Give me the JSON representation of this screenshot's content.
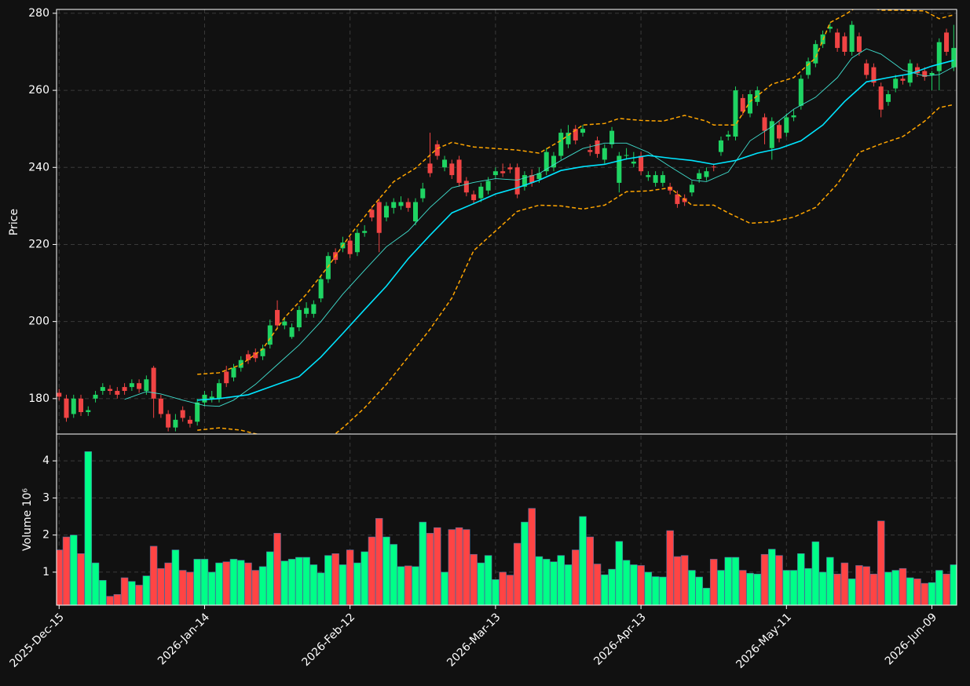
{
  "chart_data": {
    "type": "candlestick",
    "panels": [
      {
        "ylabel": "Price",
        "ylim": [
          170.8,
          281.0
        ],
        "yticks": [
          180,
          200,
          220,
          240,
          260,
          280
        ]
      },
      {
        "ylabel": "Volume  10⁶",
        "ylim": [
          0.11,
          4.68
        ],
        "yticks": [
          1,
          2,
          3,
          4
        ]
      }
    ],
    "xlim": [
      -0.35,
      123.4
    ],
    "xticks": [
      {
        "value": 0,
        "label": "2025-Dec-15"
      },
      {
        "value": 20,
        "label": "2026-Jan-14"
      },
      {
        "value": 40,
        "label": "2026-Feb-12"
      },
      {
        "value": 60,
        "label": "2026-Mar-13"
      },
      {
        "value": 80,
        "label": "2026-Apr-13"
      },
      {
        "value": 100,
        "label": "2026-May-11"
      },
      {
        "value": 120,
        "label": "2026-Jun-09"
      }
    ],
    "grid": true,
    "up_color": "#1fd463",
    "down_color": "#f04444",
    "volume_up_color": "#00ff88",
    "volume_down_color": "#ff4444",
    "open": [
      181.5,
      180,
      176,
      180,
      176.5,
      180,
      182,
      182.5,
      182,
      183,
      183,
      184,
      182,
      188,
      180,
      176,
      172.5,
      177,
      174.5,
      174,
      179,
      180,
      180,
      187,
      185.5,
      188,
      191.5,
      192,
      191,
      194,
      203,
      199,
      196,
      198.5,
      202,
      202,
      206,
      211,
      218,
      219,
      221,
      218,
      223,
      229,
      231,
      227,
      229.5,
      230,
      231,
      226,
      232,
      241,
      246,
      240,
      241,
      242,
      236.5,
      233,
      232,
      234,
      238,
      239,
      240,
      240,
      235,
      238,
      237,
      239,
      240,
      243,
      246,
      250,
      249,
      244.5,
      247,
      242,
      246,
      236,
      243,
      241,
      243,
      237.5,
      236,
      236,
      235,
      233,
      232,
      233.5,
      237,
      237.5,
      240.2,
      244,
      248,
      248,
      258,
      254,
      257,
      253,
      245,
      251,
      249,
      253,
      256,
      264,
      267,
      272,
      276,
      275,
      274,
      270,
      274,
      267,
      266,
      261,
      257,
      260.5,
      263,
      262,
      266,
      265,
      264,
      265,
      275,
      266
    ],
    "high": [
      182.5,
      181,
      181,
      181,
      178,
      182,
      184,
      183.5,
      183,
      184,
      185,
      185,
      186,
      188.5,
      181,
      177,
      176,
      178,
      175.5,
      180,
      182,
      182,
      185,
      188.5,
      189,
      191,
      192.5,
      193,
      194,
      200.5,
      205.5,
      201,
      199.5,
      204,
      205,
      205.5,
      212,
      218,
      219,
      222,
      222,
      224,
      225,
      230,
      232,
      231,
      232,
      232.5,
      232,
      232,
      236,
      249,
      247,
      243,
      242,
      243,
      237.5,
      234,
      236,
      237.5,
      240,
      241,
      241,
      241,
      239,
      239.5,
      240,
      245,
      244,
      250,
      251,
      251,
      251,
      246,
      248,
      246,
      250.5,
      244,
      245,
      244,
      244,
      239,
      239,
      239,
      236,
      234,
      233,
      236.5,
      239.5,
      240,
      241,
      248,
      249.5,
      261,
      259,
      260,
      261,
      254,
      253,
      252,
      254,
      255,
      264,
      268.5,
      273,
      275.5,
      277.5,
      276,
      275,
      278,
      275,
      268,
      267,
      262,
      260,
      264,
      264,
      268,
      267,
      266,
      265,
      273.5,
      276,
      277
    ],
    "low": [
      179.5,
      174,
      175,
      175.5,
      175.5,
      179,
      181,
      181,
      180,
      181,
      182,
      181.5,
      181,
      175,
      175,
      171.5,
      171.5,
      174,
      172.5,
      173,
      178,
      179,
      179,
      183,
      184.5,
      187,
      189,
      189.5,
      190,
      193,
      198,
      198,
      195.5,
      197.5,
      201,
      201,
      205,
      210,
      215,
      218,
      216.5,
      217,
      222,
      226,
      218,
      226,
      228,
      229,
      228.5,
      225,
      231,
      237.5,
      242,
      239,
      237,
      235,
      232.5,
      230.5,
      231,
      233,
      237,
      237.5,
      238.5,
      232,
      234,
      235,
      236,
      238,
      239,
      242,
      245,
      246,
      248,
      243,
      242.5,
      241,
      245,
      233.5,
      242,
      240,
      238,
      236.5,
      235,
      235,
      233,
      229.5,
      230,
      232.5,
      236,
      236.5,
      239,
      243,
      247,
      247,
      253.5,
      253,
      256,
      246,
      242,
      246.5,
      248,
      252,
      255,
      263,
      266,
      271,
      275,
      270,
      269,
      269,
      269,
      263,
      261,
      253,
      256,
      259.5,
      261.5,
      261,
      263.5,
      262.5,
      260,
      260,
      269,
      265
    ],
    "close": [
      180.5,
      175,
      180,
      176.5,
      177,
      181,
      183,
      182,
      181,
      182,
      184,
      182.5,
      185,
      180,
      176,
      172.5,
      174.5,
      175,
      173.5,
      179,
      181,
      180.5,
      184,
      184,
      188,
      190,
      190,
      190.5,
      193,
      199,
      199,
      200,
      198.5,
      203,
      203.5,
      204.5,
      211,
      217,
      216,
      220.5,
      217.5,
      223,
      223.5,
      227,
      223,
      230,
      231,
      231,
      229.5,
      231,
      234.5,
      238.5,
      243,
      242,
      238,
      236,
      233.5,
      231.5,
      235,
      236.5,
      239,
      238.5,
      239.5,
      233,
      238,
      236,
      238.5,
      244,
      243,
      249,
      249,
      247,
      250,
      244,
      243.5,
      245,
      249.5,
      243,
      243.2,
      241.5,
      239,
      238,
      238,
      238,
      234,
      230.5,
      231,
      235.5,
      238.5,
      239,
      240,
      247,
      248.5,
      260,
      254.5,
      259,
      260,
      249.5,
      252,
      247.5,
      253,
      253.5,
      263,
      267.5,
      272,
      274.5,
      276.5,
      271,
      270,
      277,
      270,
      264,
      262,
      255,
      259,
      263,
      262.5,
      267,
      264.5,
      263.5,
      264.5,
      272.5,
      270,
      271
    ],
    "volume": [
      1.6,
      1.95,
      2.0,
      1.5,
      4.25,
      1.25,
      0.78,
      0.35,
      0.4,
      0.85,
      0.75,
      0.65,
      0.9,
      1.7,
      1.1,
      1.25,
      1.6,
      1.05,
      1.0,
      1.35,
      1.35,
      1.0,
      1.25,
      1.28,
      1.35,
      1.32,
      1.25,
      1.05,
      1.15,
      1.55,
      2.05,
      1.3,
      1.35,
      1.4,
      1.4,
      1.2,
      0.98,
      1.45,
      1.5,
      1.2,
      1.6,
      1.25,
      1.55,
      1.95,
      2.45,
      1.95,
      1.75,
      1.15,
      1.17,
      1.15,
      2.35,
      2.05,
      2.2,
      1.0,
      2.15,
      2.2,
      2.15,
      1.48,
      1.25,
      1.45,
      0.8,
      1.0,
      0.92,
      1.78,
      2.35,
      2.72,
      1.42,
      1.35,
      1.28,
      1.45,
      1.2,
      1.6,
      2.5,
      1.95,
      1.22,
      0.93,
      1.08,
      1.83,
      1.32,
      1.2,
      1.18,
      1.0,
      0.88,
      0.87,
      2.12,
      1.42,
      1.45,
      1.05,
      0.87,
      0.57,
      1.35,
      1.05,
      1.4,
      1.4,
      1.05,
      0.97,
      0.95,
      1.48,
      1.62,
      1.45,
      1.05,
      1.05,
      1.5,
      1.1,
      1.82,
      1.0,
      1.4,
      0.95,
      1.25,
      0.82,
      1.18,
      1.15,
      0.95,
      2.38,
      1.0,
      1.05,
      1.1,
      0.85,
      0.82,
      0.7,
      0.72,
      1.05,
      0.95,
      1.2
    ],
    "lines": [
      {
        "color": "#40e0d0",
        "width": 0.9,
        "dash": false,
        "x": [
          9,
          12,
          14,
          17,
          20,
          22,
          24,
          27,
          30,
          33,
          36,
          39,
          42,
          45,
          48,
          51,
          54,
          57,
          60,
          63,
          66,
          69,
          72,
          75,
          78,
          81,
          84,
          87,
          89,
          92,
          95,
          98,
          101,
          104,
          107,
          109,
          111,
          113,
          116,
          119,
          121,
          123
        ],
        "values": [
          179.8,
          181.8,
          181.2,
          179.6,
          178.2,
          178,
          179.6,
          183.7,
          188.8,
          193.9,
          200,
          207.1,
          213.3,
          219.4,
          223.5,
          229.6,
          234.7,
          236.1,
          237.1,
          236.7,
          238.4,
          241.8,
          244.9,
          246.3,
          246.3,
          243.9,
          240.2,
          236.7,
          236.3,
          238.8,
          246.9,
          250.6,
          255.1,
          258.2,
          263.3,
          268.4,
          270.8,
          269.4,
          265.3,
          263.7,
          264.1,
          266.1
        ]
      },
      {
        "color": "#00e5ff",
        "width": 1.6,
        "dash": false,
        "x": [
          19,
          22,
          26,
          30,
          33,
          36,
          39,
          42,
          45,
          48,
          51,
          54,
          57,
          60,
          63,
          66,
          69,
          72,
          75,
          78,
          81,
          84,
          87,
          90,
          93,
          96,
          99,
          102,
          105,
          108,
          111,
          114,
          117,
          120,
          123
        ],
        "values": [
          179.6,
          180,
          181,
          183.7,
          185.7,
          190.8,
          196.9,
          203.1,
          209.2,
          216.3,
          222.4,
          228.2,
          230.6,
          233.1,
          234.7,
          236.7,
          239.2,
          240.2,
          240.8,
          242.2,
          243.1,
          242.4,
          241.8,
          240.8,
          241.8,
          243.7,
          244.9,
          246.9,
          251,
          257.1,
          262.2,
          263.3,
          264.3,
          266.3,
          267.8
        ]
      },
      {
        "color": "#ffa500",
        "width": 1.5,
        "dash": true,
        "x": [
          19,
          22,
          25,
          28,
          31,
          34,
          37,
          40,
          43,
          46,
          49,
          52,
          54,
          57,
          60,
          63,
          66,
          69,
          72,
          75,
          77,
          80,
          83,
          86,
          89,
          90,
          93,
          95,
          98,
          101,
          104,
          106,
          108,
          110,
          113,
          116,
          119,
          121,
          123
        ],
        "values": [
          186.3,
          186.7,
          188.8,
          192.9,
          201,
          207.1,
          214.3,
          222.4,
          229.6,
          236.3,
          239.8,
          244.9,
          246.5,
          245.3,
          244.9,
          244.5,
          243.7,
          247,
          251,
          251.4,
          252.7,
          252.2,
          252,
          253.5,
          252,
          251,
          251,
          257.1,
          261.6,
          263.3,
          268.4,
          277.6,
          279.6,
          282,
          280.8,
          280.8,
          280.6,
          278.6,
          279.6
        ]
      },
      {
        "color": "#ffa500",
        "width": 1.5,
        "dash": true,
        "x": [
          19,
          22,
          25,
          28,
          30,
          33,
          37,
          39,
          42,
          45,
          48,
          51,
          54,
          57,
          60,
          63,
          66,
          69,
          72,
          75,
          78,
          81,
          84,
          87,
          90,
          92,
          95,
          98,
          101,
          104,
          107,
          110,
          113,
          116,
          119,
          121,
          123
        ],
        "values": [
          171.8,
          172.4,
          171.8,
          170.4,
          169.4,
          167.3,
          169.4,
          172.4,
          177.6,
          183.7,
          190.8,
          198,
          206.1,
          218.4,
          223.5,
          228.6,
          230.2,
          230,
          229.2,
          230.2,
          233.7,
          233.9,
          234.7,
          230.2,
          230.2,
          228.2,
          225.5,
          225.9,
          227.1,
          229.6,
          235.7,
          243.9,
          246.1,
          248,
          252,
          255.5,
          256.3
        ]
      }
    ]
  }
}
